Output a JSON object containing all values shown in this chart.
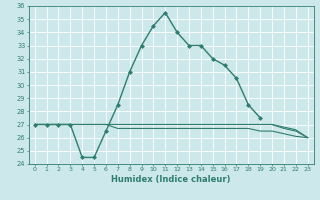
{
  "xlabel": "Humidex (Indice chaleur)",
  "x": [
    0,
    1,
    2,
    3,
    4,
    5,
    6,
    7,
    8,
    9,
    10,
    11,
    12,
    13,
    14,
    15,
    16,
    17,
    18,
    19,
    20,
    21,
    22,
    23
  ],
  "y_main": [
    27.0,
    27.0,
    27.0,
    27.0,
    24.5,
    24.5,
    26.5,
    28.5,
    31.0,
    33.0,
    34.5,
    35.5,
    34.0,
    33.0,
    33.0,
    32.0,
    31.5,
    30.5,
    28.5,
    27.5,
    null,
    null,
    null,
    null
  ],
  "y_flat1": [
    27.0,
    27.0,
    27.0,
    27.0,
    27.0,
    27.0,
    27.0,
    27.0,
    27.0,
    27.0,
    27.0,
    27.0,
    27.0,
    27.0,
    27.0,
    27.0,
    27.0,
    27.0,
    27.0,
    27.0,
    27.0,
    26.8,
    26.6,
    26.0
  ],
  "y_flat2": [
    27.0,
    27.0,
    27.0,
    27.0,
    27.0,
    27.0,
    27.0,
    27.0,
    27.0,
    27.0,
    27.0,
    27.0,
    27.0,
    27.0,
    27.0,
    27.0,
    27.0,
    27.0,
    27.0,
    27.0,
    27.0,
    26.7,
    26.5,
    26.0
  ],
  "y_flat3": [
    27.0,
    27.0,
    27.0,
    27.0,
    27.0,
    27.0,
    27.0,
    26.7,
    26.7,
    26.7,
    26.7,
    26.7,
    26.7,
    26.7,
    26.7,
    26.7,
    26.7,
    26.7,
    26.7,
    26.5,
    26.5,
    26.3,
    26.1,
    26.0
  ],
  "ylim": [
    24,
    36
  ],
  "xlim": [
    -0.5,
    23.5
  ],
  "yticks": [
    24,
    25,
    26,
    27,
    28,
    29,
    30,
    31,
    32,
    33,
    34,
    35,
    36
  ],
  "xticks": [
    0,
    1,
    2,
    3,
    4,
    5,
    6,
    7,
    8,
    9,
    10,
    11,
    12,
    13,
    14,
    15,
    16,
    17,
    18,
    19,
    20,
    21,
    22,
    23
  ],
  "line_color": "#2e7d6e",
  "bg_color": "#cde8ea",
  "grid_color": "#ffffff"
}
